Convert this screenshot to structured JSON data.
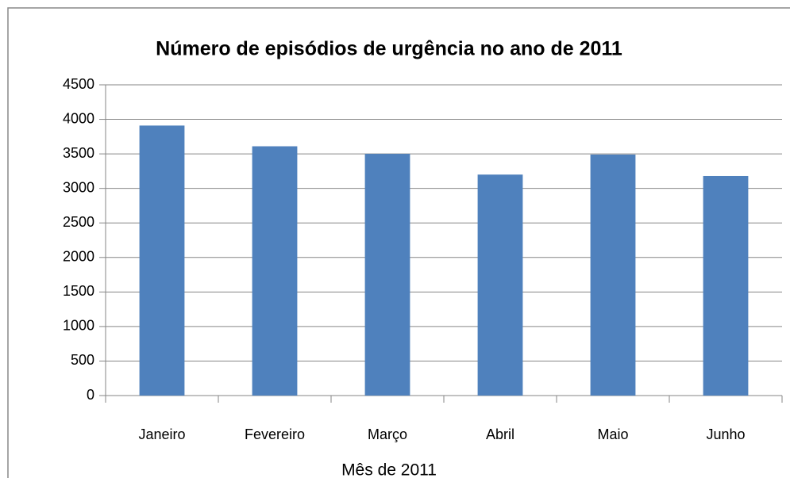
{
  "chart_data": {
    "type": "bar",
    "title": "Número de episódios de urgência no ano de 2011",
    "x_label": "Mês de 2011",
    "categories": [
      "Janeiro",
      "Fevereiro",
      "Março",
      "Abril",
      "Maio",
      "Junho"
    ],
    "values": [
      3910,
      3610,
      3500,
      3200,
      3490,
      3180
    ],
    "color": "#4f81bd",
    "ylim": [
      0,
      4500
    ],
    "yticks": [
      0,
      500,
      1000,
      1500,
      2000,
      2500,
      3000,
      3500,
      4000,
      4500
    ],
    "grid": true
  }
}
